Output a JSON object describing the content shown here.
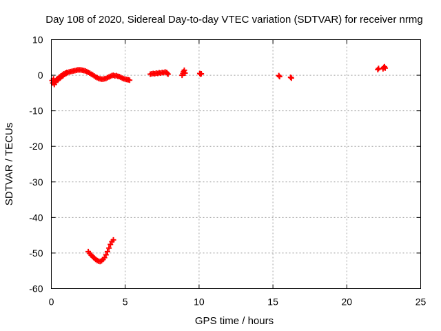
{
  "chart_data": {
    "type": "scatter",
    "title": "Day 108 of 2020, Sidereal Day-to-day VTEC variation (SDTVAR) for receiver nrmg",
    "xlabel": "GPS time / hours",
    "ylabel": "SDTVAR / TECUs",
    "xlim": [
      0,
      25
    ],
    "ylim": [
      -60,
      10
    ],
    "xticks": [
      0,
      5,
      10,
      15,
      20,
      25
    ],
    "yticks": [
      10,
      0,
      -10,
      -20,
      -30,
      -40,
      -50,
      -60
    ],
    "grid": true,
    "marker": "plus",
    "color": "#ff0000",
    "series": [
      {
        "name": "SDTVAR",
        "points": [
          [
            0.05,
            -1.5
          ],
          [
            0.1,
            -2.2
          ],
          [
            0.15,
            -1.0
          ],
          [
            0.2,
            -2.6
          ],
          [
            0.25,
            -1.8
          ],
          [
            0.3,
            -2.0
          ],
          [
            0.35,
            -1.2
          ],
          [
            0.4,
            -1.4
          ],
          [
            0.45,
            -0.9
          ],
          [
            0.5,
            -1.1
          ],
          [
            0.55,
            -0.5
          ],
          [
            0.6,
            -0.8
          ],
          [
            0.65,
            -0.2
          ],
          [
            0.7,
            -0.4
          ],
          [
            0.75,
            0.1
          ],
          [
            0.8,
            -0.1
          ],
          [
            0.85,
            0.4
          ],
          [
            0.9,
            0.2
          ],
          [
            0.95,
            0.6
          ],
          [
            1.0,
            0.5
          ],
          [
            1.05,
            0.8
          ],
          [
            1.1,
            0.7
          ],
          [
            1.2,
            0.9
          ],
          [
            1.3,
            1.0
          ],
          [
            1.4,
            1.1
          ],
          [
            1.5,
            1.2
          ],
          [
            1.6,
            1.3
          ],
          [
            1.7,
            1.4
          ],
          [
            1.8,
            1.5
          ],
          [
            1.9,
            1.5
          ],
          [
            2.0,
            1.5
          ],
          [
            2.1,
            1.4
          ],
          [
            2.2,
            1.3
          ],
          [
            2.3,
            1.2
          ],
          [
            2.4,
            1.0
          ],
          [
            2.5,
            0.8
          ],
          [
            2.6,
            0.6
          ],
          [
            2.7,
            0.3
          ],
          [
            2.8,
            0.1
          ],
          [
            2.9,
            -0.2
          ],
          [
            3.0,
            -0.5
          ],
          [
            3.1,
            -0.7
          ],
          [
            3.2,
            -0.9
          ],
          [
            3.3,
            -1.0
          ],
          [
            3.4,
            -1.1
          ],
          [
            3.5,
            -1.1
          ],
          [
            3.6,
            -1.0
          ],
          [
            3.7,
            -0.9
          ],
          [
            3.8,
            -0.7
          ],
          [
            3.9,
            -0.5
          ],
          [
            4.0,
            -0.3
          ],
          [
            4.1,
            -0.1
          ],
          [
            4.2,
            0.0
          ],
          [
            4.3,
            -0.2
          ],
          [
            4.4,
            -0.1
          ],
          [
            4.5,
            -0.3
          ],
          [
            4.6,
            -0.4
          ],
          [
            4.7,
            -0.6
          ],
          [
            4.8,
            -0.8
          ],
          [
            4.9,
            -1.0
          ],
          [
            5.0,
            -1.1
          ],
          [
            5.1,
            -1.2
          ],
          [
            5.2,
            -1.3
          ],
          [
            5.3,
            -1.4
          ],
          [
            6.7,
            0.3
          ],
          [
            6.8,
            0.4
          ],
          [
            6.9,
            0.5
          ],
          [
            7.0,
            0.4
          ],
          [
            7.1,
            0.6
          ],
          [
            7.2,
            0.5
          ],
          [
            7.3,
            0.7
          ],
          [
            7.4,
            0.6
          ],
          [
            7.5,
            0.8
          ],
          [
            7.6,
            0.7
          ],
          [
            7.7,
            0.9
          ],
          [
            7.8,
            0.8
          ],
          [
            7.85,
            0.5
          ],
          [
            7.9,
            0.3
          ],
          [
            8.85,
            0.0
          ],
          [
            8.9,
            0.5
          ],
          [
            8.95,
            1.0
          ],
          [
            9.0,
            1.4
          ],
          [
            9.05,
            0.6
          ],
          [
            10.05,
            0.5
          ],
          [
            10.1,
            0.3
          ],
          [
            10.15,
            0.4
          ],
          [
            15.4,
            -0.1
          ],
          [
            15.45,
            -0.4
          ],
          [
            16.2,
            -0.6
          ],
          [
            16.25,
            -0.8
          ],
          [
            22.1,
            1.6
          ],
          [
            22.15,
            1.9
          ],
          [
            22.45,
            1.8
          ],
          [
            22.5,
            2.2
          ],
          [
            22.55,
            2.4
          ],
          [
            22.6,
            2.0
          ],
          [
            2.5,
            -49.6
          ],
          [
            2.6,
            -50.1
          ],
          [
            2.7,
            -50.6
          ],
          [
            2.8,
            -51.0
          ],
          [
            2.9,
            -51.4
          ],
          [
            3.0,
            -51.8
          ],
          [
            3.1,
            -52.1
          ],
          [
            3.2,
            -52.3
          ],
          [
            3.3,
            -52.4
          ],
          [
            3.4,
            -52.2
          ],
          [
            3.5,
            -51.8
          ],
          [
            3.6,
            -51.3
          ],
          [
            3.7,
            -50.5
          ],
          [
            3.8,
            -49.6
          ],
          [
            3.9,
            -48.6
          ],
          [
            4.0,
            -47.6
          ],
          [
            4.1,
            -46.8
          ],
          [
            4.2,
            -46.3
          ]
        ]
      }
    ]
  }
}
